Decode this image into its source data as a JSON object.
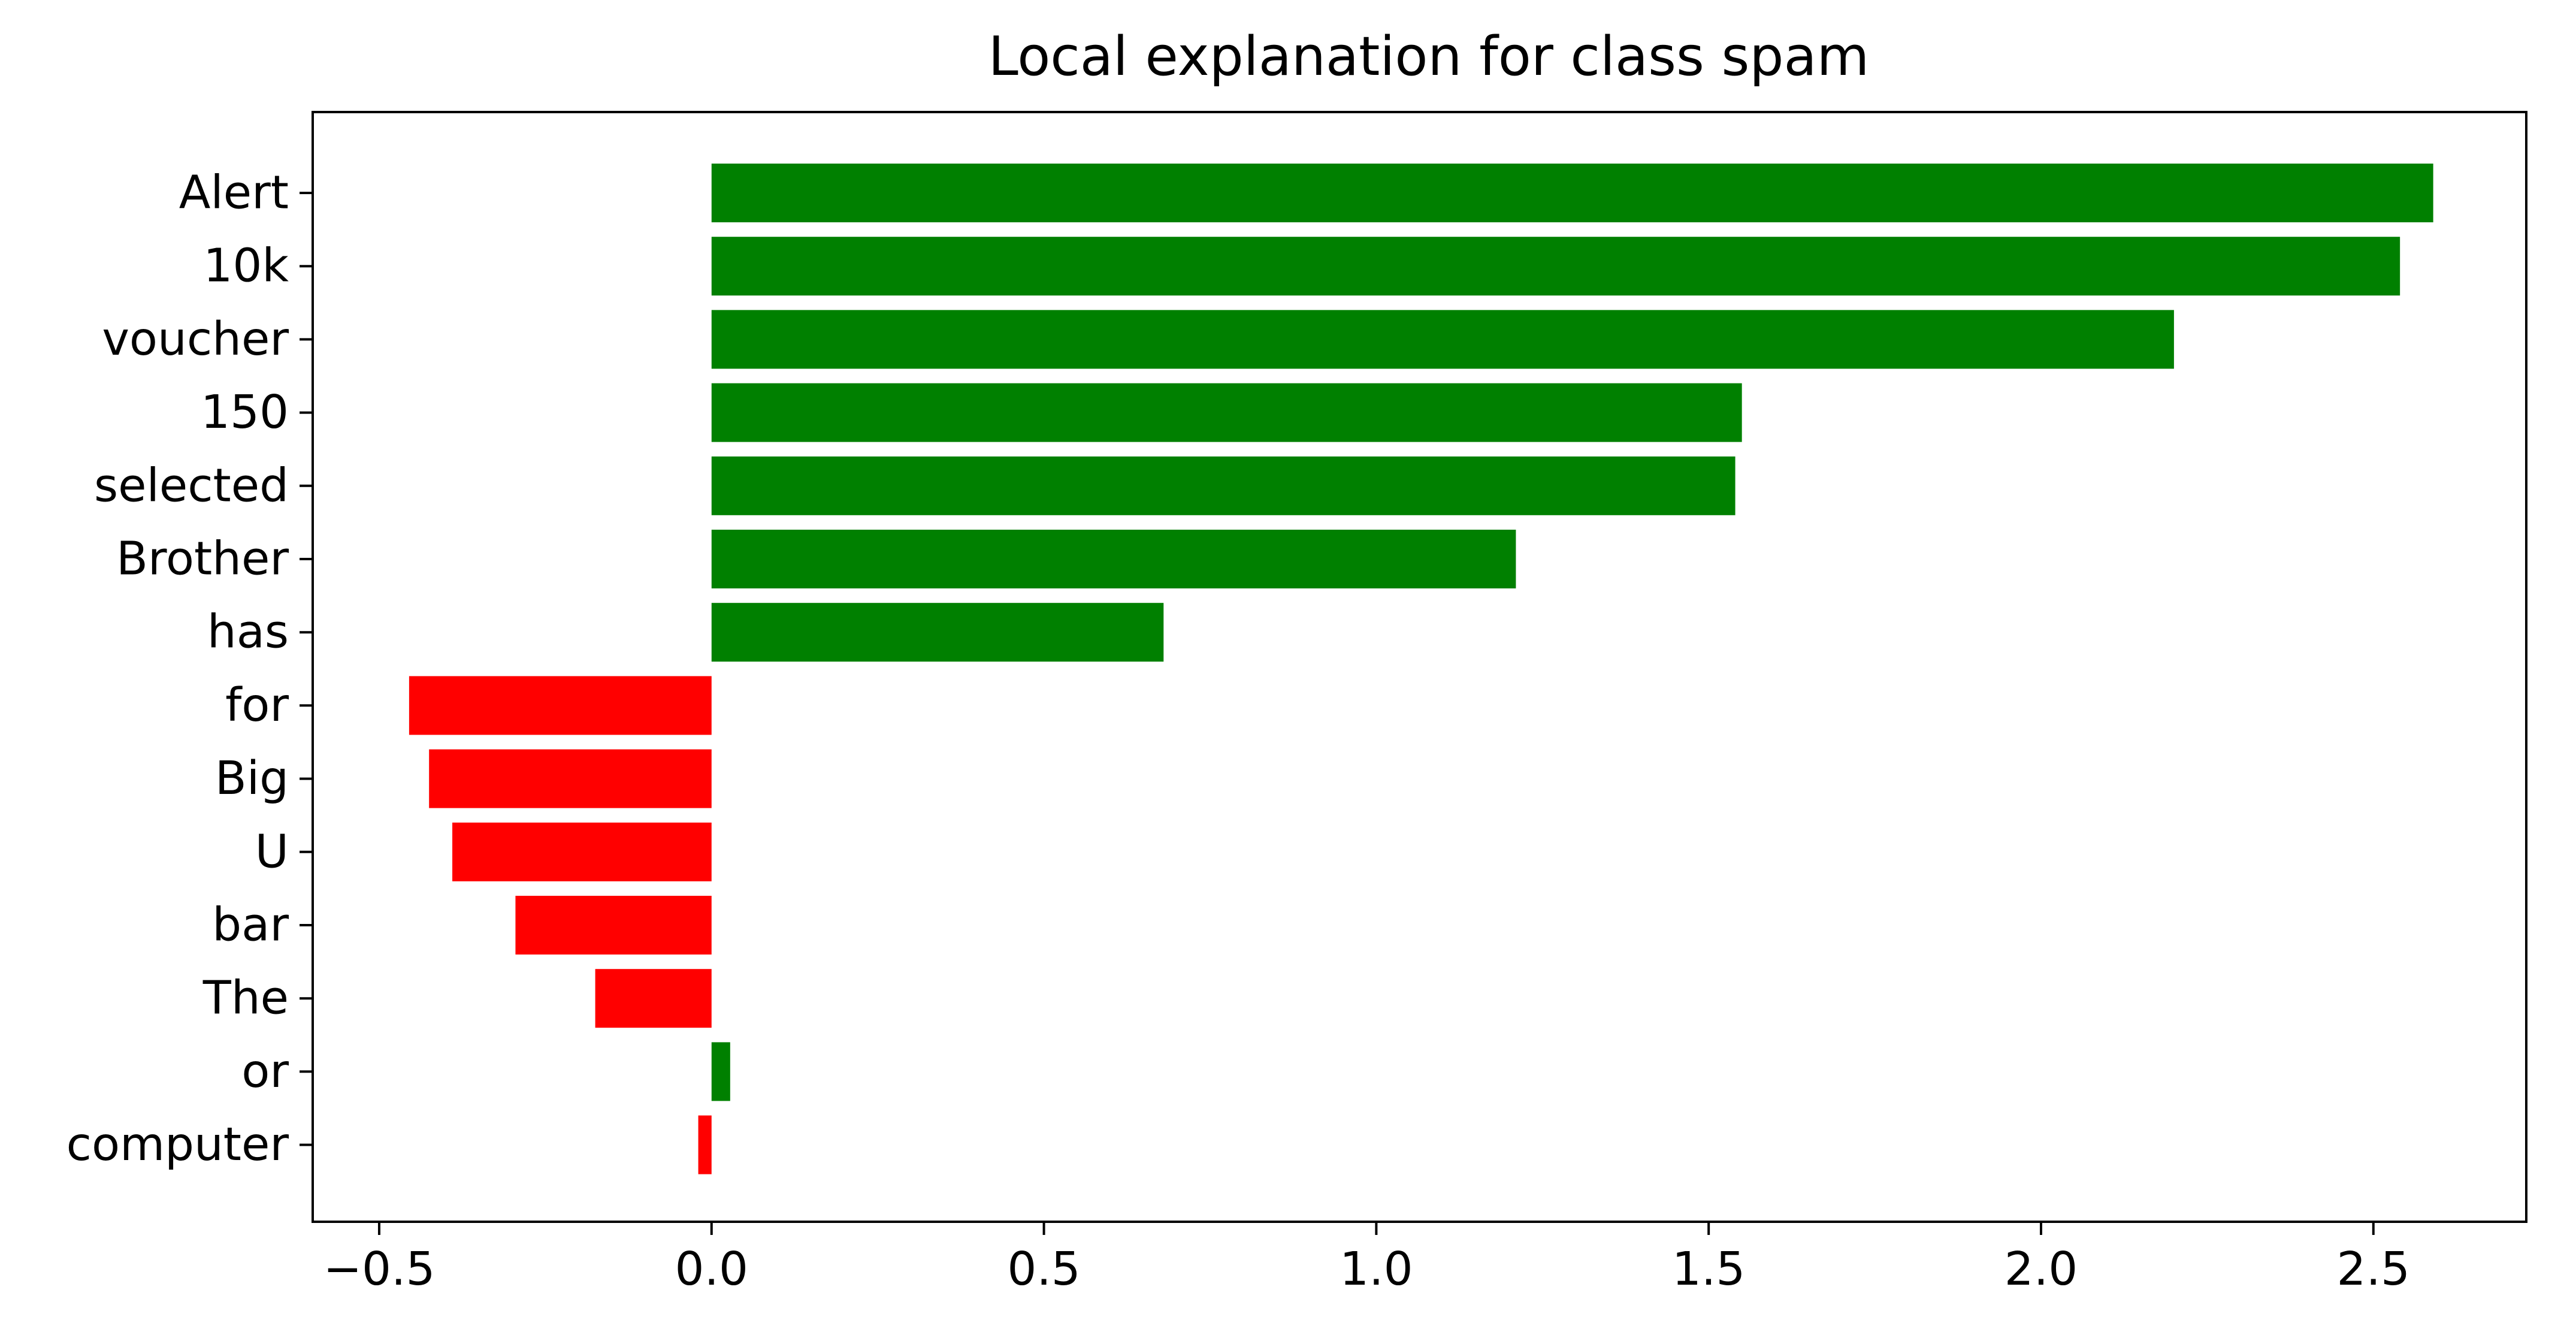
{
  "chart_data": {
    "type": "bar",
    "orientation": "horizontal",
    "title": "Local explanation for class spam",
    "xlabel": "",
    "ylabel": "",
    "xlim": [
      -0.6,
      2.73
    ],
    "xticks": [
      -0.5,
      0.0,
      0.5,
      1.0,
      1.5,
      2.0,
      2.5
    ],
    "xtick_labels": [
      "−0.5",
      "0.0",
      "0.5",
      "1.0",
      "1.5",
      "2.0",
      "2.5"
    ],
    "grid": false,
    "legend": "none",
    "colors": {
      "positive": "#008000",
      "negative": "#ff0000"
    },
    "categories": [
      "Alert",
      "10k",
      "voucher",
      "150",
      "selected",
      "Brother",
      "has",
      "for",
      "Big",
      "U",
      "bar",
      "The",
      "or",
      "computer"
    ],
    "values": [
      2.59,
      2.54,
      2.2,
      1.55,
      1.54,
      1.21,
      0.68,
      -0.455,
      -0.425,
      -0.39,
      -0.295,
      -0.175,
      0.028,
      -0.02
    ]
  }
}
